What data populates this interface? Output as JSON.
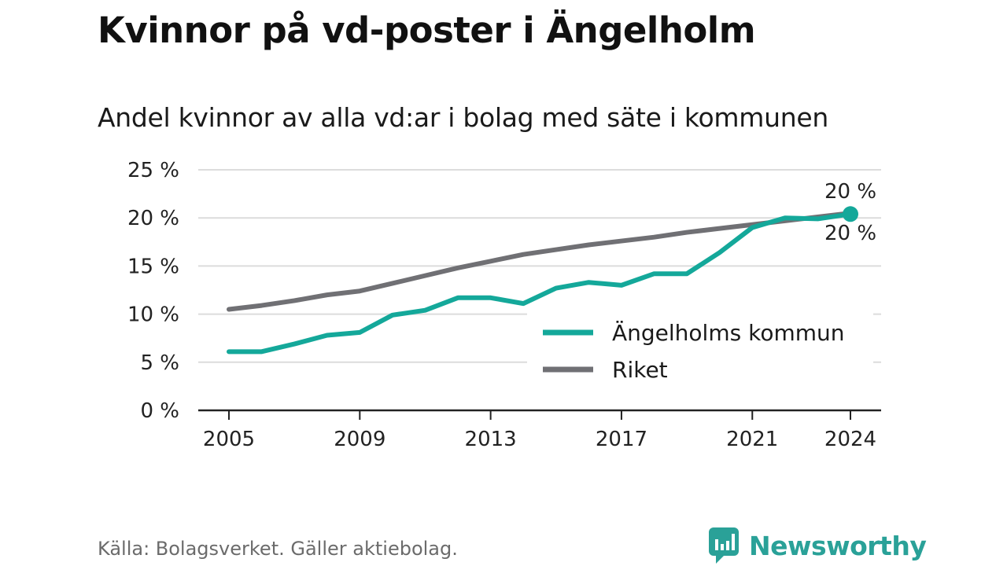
{
  "title": "Kvinnor på vd-poster i Ängelholm",
  "subtitle": "Andel kvinnor av alla vd:ar i bolag med säte i kommunen",
  "footer": "Källa: Bolagsverket. Gäller aktiebolag.",
  "brand": "Newsworthy",
  "colors": {
    "angelholm": "#14a89a",
    "riket": "#707074",
    "grid": "#dcdcdc",
    "axis": "#222222"
  },
  "chart_data": {
    "type": "line",
    "x": [
      2005,
      2006,
      2007,
      2008,
      2009,
      2010,
      2011,
      2012,
      2013,
      2014,
      2015,
      2016,
      2017,
      2018,
      2019,
      2020,
      2021,
      2022,
      2023,
      2024
    ],
    "x_ticks": [
      2005,
      2009,
      2013,
      2017,
      2021,
      2024
    ],
    "y_ticks": [
      0,
      5,
      10,
      15,
      20,
      25
    ],
    "y_tick_labels": [
      "0 %",
      "5 %",
      "10 %",
      "15 %",
      "20 %",
      "25 %"
    ],
    "ylim": [
      0,
      25
    ],
    "grid": true,
    "legend_position": "bottom-right",
    "series": [
      {
        "name": "Ängelholms kommun",
        "color": "#14a89a",
        "values": [
          6.1,
          6.1,
          6.9,
          7.8,
          8.1,
          9.9,
          10.4,
          11.7,
          11.7,
          11.1,
          12.7,
          13.3,
          13.0,
          14.2,
          14.2,
          16.4,
          19.0,
          20.0,
          19.9,
          20.4
        ],
        "end_label": "20 %"
      },
      {
        "name": "Riket",
        "color": "#707074",
        "values": [
          10.5,
          10.9,
          11.4,
          12.0,
          12.4,
          13.2,
          14.0,
          14.8,
          15.5,
          16.2,
          16.7,
          17.2,
          17.6,
          18.0,
          18.5,
          18.9,
          19.3,
          19.7,
          20.1,
          20.5
        ],
        "end_label": "20 %"
      }
    ]
  }
}
